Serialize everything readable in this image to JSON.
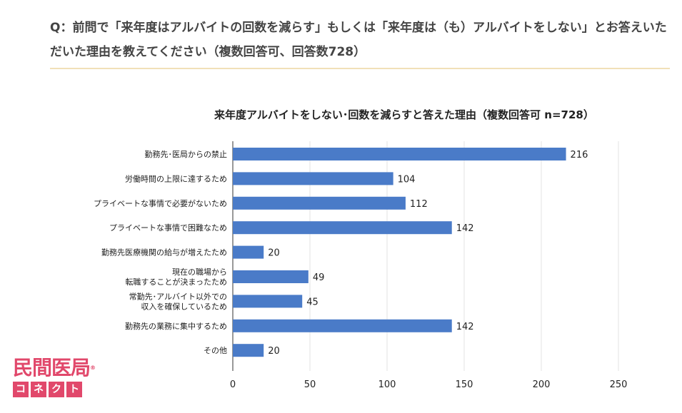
{
  "question": {
    "text": "Q：前問で「来年度はアルバイトの回数を減らす」もしくは「来年度は（も）アルバイトをしない」とお答えいただいた理由を教えてください（複数回答可、回答数728）"
  },
  "logo": {
    "top": "民間医局",
    "mark": "®",
    "bottom": [
      "コ",
      "ネ",
      "ク",
      "ト"
    ]
  },
  "chart_data": {
    "type": "bar",
    "orientation": "horizontal",
    "title": "来年度アルバイトをしない･回数を減らすと答えた理由（複数回答可 n=728）",
    "categories": [
      [
        "勤務先･医局からの禁止"
      ],
      [
        "労働時間の上限に達するため"
      ],
      [
        "プライベートな事情で必要がないため"
      ],
      [
        "プライベートな事情で困難なため"
      ],
      [
        "勤務先医療機関の給与が増えたため"
      ],
      [
        "現在の職場から",
        "転職することが決まったため"
      ],
      [
        "常勤先･アルバイト以外での",
        "収入を確保しているため"
      ],
      [
        "勤務先の業務に集中するため"
      ],
      [
        "その他"
      ]
    ],
    "values": [
      216,
      104,
      112,
      142,
      20,
      49,
      45,
      142,
      20
    ],
    "xlim": [
      0,
      250
    ],
    "xticks": [
      0,
      50,
      100,
      150,
      200,
      250
    ],
    "grid": true,
    "colors": {
      "bar": "#4a7bc8",
      "grid": "#e3e3e3",
      "axis": "#333333"
    }
  }
}
